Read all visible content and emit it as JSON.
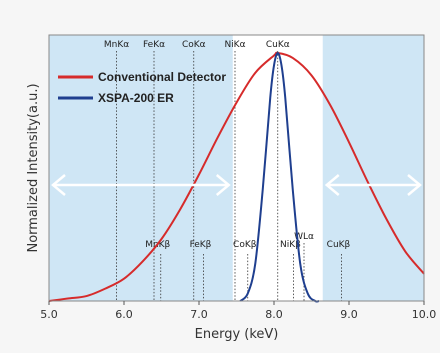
{
  "chart_data": {
    "type": "line",
    "xlabel": "Energy (keV)",
    "ylabel": "Normalized Intensity(a.u.)",
    "xlim": [
      5.0,
      10.0
    ],
    "ylim": [
      0,
      1
    ],
    "x_ticks": [
      "5.0",
      "6.0",
      "7.0",
      "8.0",
      "9.0",
      "10.0"
    ],
    "x_tick_values": [
      5.0,
      6.0,
      7.0,
      8.0,
      9.0,
      10.0
    ],
    "grid": false,
    "legend_position": "top-left",
    "series": [
      {
        "name": "Conventional Detector",
        "color": "#d62b2b",
        "x": [
          5.0,
          5.25,
          5.5,
          5.75,
          6.0,
          6.25,
          6.5,
          6.75,
          7.0,
          7.25,
          7.5,
          7.75,
          8.0,
          8.05,
          8.25,
          8.5,
          8.75,
          9.0,
          9.25,
          9.5,
          9.75,
          10.0
        ],
        "y": [
          0.0,
          0.01,
          0.02,
          0.05,
          0.09,
          0.16,
          0.25,
          0.37,
          0.51,
          0.66,
          0.8,
          0.92,
          0.99,
          1.0,
          0.98,
          0.91,
          0.79,
          0.64,
          0.48,
          0.33,
          0.2,
          0.11
        ]
      },
      {
        "name": "XSPA-200 ER",
        "color": "#1f3f8f",
        "x": [
          7.55,
          7.65,
          7.75,
          7.85,
          7.95,
          8.0,
          8.05,
          8.1,
          8.15,
          8.25,
          8.35,
          8.45,
          8.55,
          8.6
        ],
        "y": [
          0.0,
          0.03,
          0.15,
          0.45,
          0.82,
          0.95,
          1.0,
          0.95,
          0.82,
          0.45,
          0.15,
          0.03,
          0.0,
          0.0
        ]
      }
    ],
    "highlight_bands": [
      {
        "from": 5.0,
        "to": 7.45,
        "color": "#cfe6f5"
      },
      {
        "from": 8.65,
        "to": 10.0,
        "color": "#cfe6f5"
      }
    ],
    "reference_lines": [
      {
        "label": "MnKα",
        "energy": 5.9,
        "group": "alpha"
      },
      {
        "label": "FeKα",
        "energy": 6.4,
        "group": "alpha"
      },
      {
        "label": "CoKα",
        "energy": 6.93,
        "group": "alpha"
      },
      {
        "label": "NiKα",
        "energy": 7.48,
        "group": "alpha"
      },
      {
        "label": "CuKα",
        "energy": 8.05,
        "group": "alpha"
      },
      {
        "label": "MnKβ",
        "energy": 6.49,
        "group": "beta"
      },
      {
        "label": "FeKβ",
        "energy": 7.06,
        "group": "beta"
      },
      {
        "label": "CoKβ",
        "energy": 7.65,
        "group": "beta"
      },
      {
        "label": "NiKβ",
        "energy": 8.26,
        "group": "beta"
      },
      {
        "label": "WLα",
        "energy": 8.4,
        "group": "beta_high"
      },
      {
        "label": "CuKβ",
        "energy": 8.9,
        "group": "beta"
      }
    ],
    "double_arrows": [
      {
        "from": 5.0,
        "to": 7.45
      },
      {
        "from": 8.65,
        "to": 10.0
      }
    ]
  }
}
